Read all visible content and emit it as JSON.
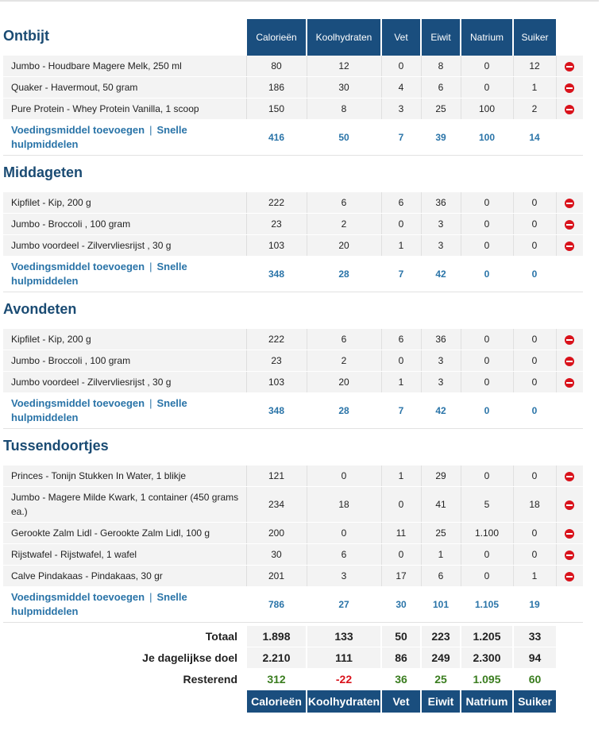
{
  "columns": [
    "Calorieën",
    "Koolhydraten",
    "Vet",
    "Eiwit",
    "Natrium",
    "Suiker"
  ],
  "add_food_label": "Voedingsmiddel toevoegen",
  "separator": "|",
  "quick_tools_line1": "Snelle",
  "quick_tools_line2": "hulpmiddelen",
  "meals": [
    {
      "name": "Ontbijt",
      "foods": [
        {
          "name": "Jumbo - Houdbare Magere Melk, 250 ml",
          "values": [
            "80",
            "12",
            "0",
            "8",
            "0",
            "12"
          ]
        },
        {
          "name": "Quaker - Havermout, 50 gram",
          "values": [
            "186",
            "30",
            "4",
            "6",
            "0",
            "1"
          ]
        },
        {
          "name": "Pure Protein - Whey Protein Vanilla, 1 scoop",
          "values": [
            "150",
            "8",
            "3",
            "25",
            "100",
            "2"
          ]
        }
      ],
      "totals": [
        "416",
        "50",
        "7",
        "39",
        "100",
        "14"
      ]
    },
    {
      "name": "Middageten",
      "foods": [
        {
          "name": "Kipfilet - Kip, 200 g",
          "values": [
            "222",
            "6",
            "6",
            "36",
            "0",
            "0"
          ]
        },
        {
          "name": "Jumbo - Broccoli , 100 gram",
          "values": [
            "23",
            "2",
            "0",
            "3",
            "0",
            "0"
          ]
        },
        {
          "name": "Jumbo voordeel - Zilvervliesrijst , 30 g",
          "values": [
            "103",
            "20",
            "1",
            "3",
            "0",
            "0"
          ]
        }
      ],
      "totals": [
        "348",
        "28",
        "7",
        "42",
        "0",
        "0"
      ]
    },
    {
      "name": "Avondeten",
      "foods": [
        {
          "name": "Kipfilet - Kip, 200 g",
          "values": [
            "222",
            "6",
            "6",
            "36",
            "0",
            "0"
          ]
        },
        {
          "name": "Jumbo - Broccoli , 100 gram",
          "values": [
            "23",
            "2",
            "0",
            "3",
            "0",
            "0"
          ]
        },
        {
          "name": "Jumbo voordeel - Zilvervliesrijst , 30 g",
          "values": [
            "103",
            "20",
            "1",
            "3",
            "0",
            "0"
          ]
        }
      ],
      "totals": [
        "348",
        "28",
        "7",
        "42",
        "0",
        "0"
      ]
    },
    {
      "name": "Tussendoortjes",
      "foods": [
        {
          "name": "Princes - Tonijn Stukken In Water, 1 blikje",
          "values": [
            "121",
            "0",
            "1",
            "29",
            "0",
            "0"
          ]
        },
        {
          "name": "Jumbo - Magere Milde Kwark, 1 container (450 grams ea.)",
          "values": [
            "234",
            "18",
            "0",
            "41",
            "5",
            "18"
          ],
          "tall": true
        },
        {
          "name": "Gerookte Zalm Lidl - Gerookte Zalm Lidl, 100 g",
          "values": [
            "200",
            "0",
            "11",
            "25",
            "1.100",
            "0"
          ]
        },
        {
          "name": "Rijstwafel - Rijstwafel, 1 wafel",
          "values": [
            "30",
            "6",
            "0",
            "1",
            "0",
            "0"
          ]
        },
        {
          "name": "Calve Pindakaas - Pindakaas, 30 gr",
          "values": [
            "201",
            "3",
            "17",
            "6",
            "0",
            "1"
          ]
        }
      ],
      "totals": [
        "786",
        "27",
        "30",
        "101",
        "1.105",
        "19"
      ]
    }
  ],
  "summary": {
    "total_label": "Totaal",
    "total": [
      "1.898",
      "133",
      "50",
      "223",
      "1.205",
      "33"
    ],
    "goal_label": "Je dagelijkse doel",
    "goal": [
      "2.210",
      "111",
      "86",
      "249",
      "2.300",
      "94"
    ],
    "remaining_label": "Resterend",
    "remaining": [
      "312",
      "-22",
      "36",
      "25",
      "1.095",
      "60"
    ]
  },
  "colors": {
    "header_bg": "#1a4e7e",
    "meal_title": "#1a4b73",
    "link": "#2a74a8",
    "positive": "#3a7d1f",
    "negative": "#d9121b",
    "remove_icon": "#d9121b"
  },
  "icons": {
    "remove": "remove-circle-icon"
  }
}
